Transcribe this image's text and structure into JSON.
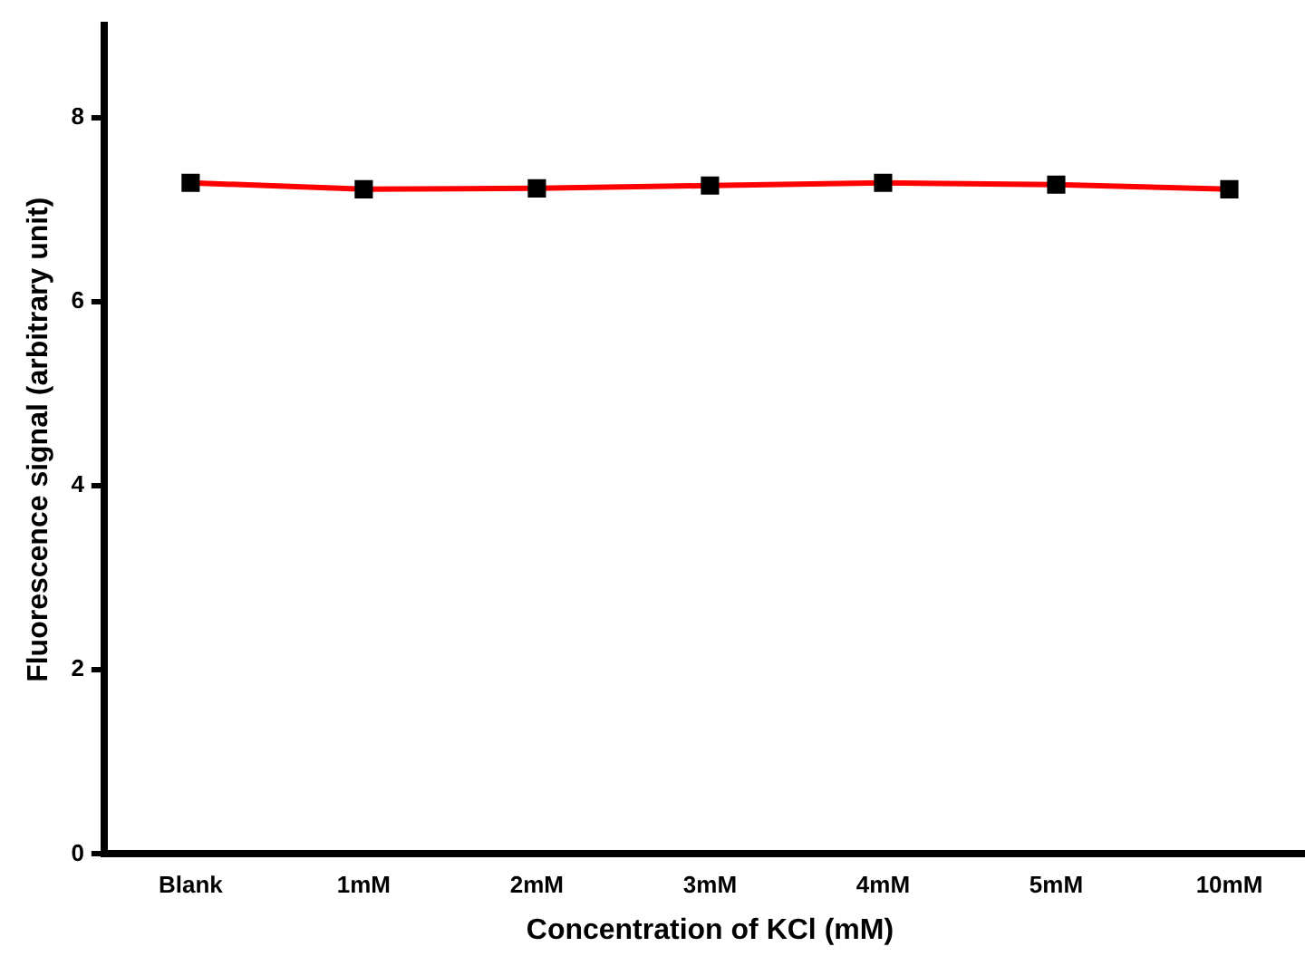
{
  "chart_data": {
    "type": "line",
    "xlabel": "Concentration of KCl (mM)",
    "ylabel": "Fluorescence signal (arbitrary unit)",
    "categories": [
      "Blank",
      "1mM",
      "2mM",
      "3mM",
      "4mM",
      "5mM",
      "10mM"
    ],
    "series": [
      {
        "color": "#ff0000",
        "values": [
          7.29,
          7.22,
          7.23,
          7.26,
          7.29,
          7.27,
          7.22
        ]
      }
    ],
    "ylim": [
      0,
      9
    ],
    "yticks": [
      0,
      2,
      4,
      6,
      8
    ],
    "grid": false,
    "legend": false,
    "marker": "square",
    "line_style": "solid"
  }
}
